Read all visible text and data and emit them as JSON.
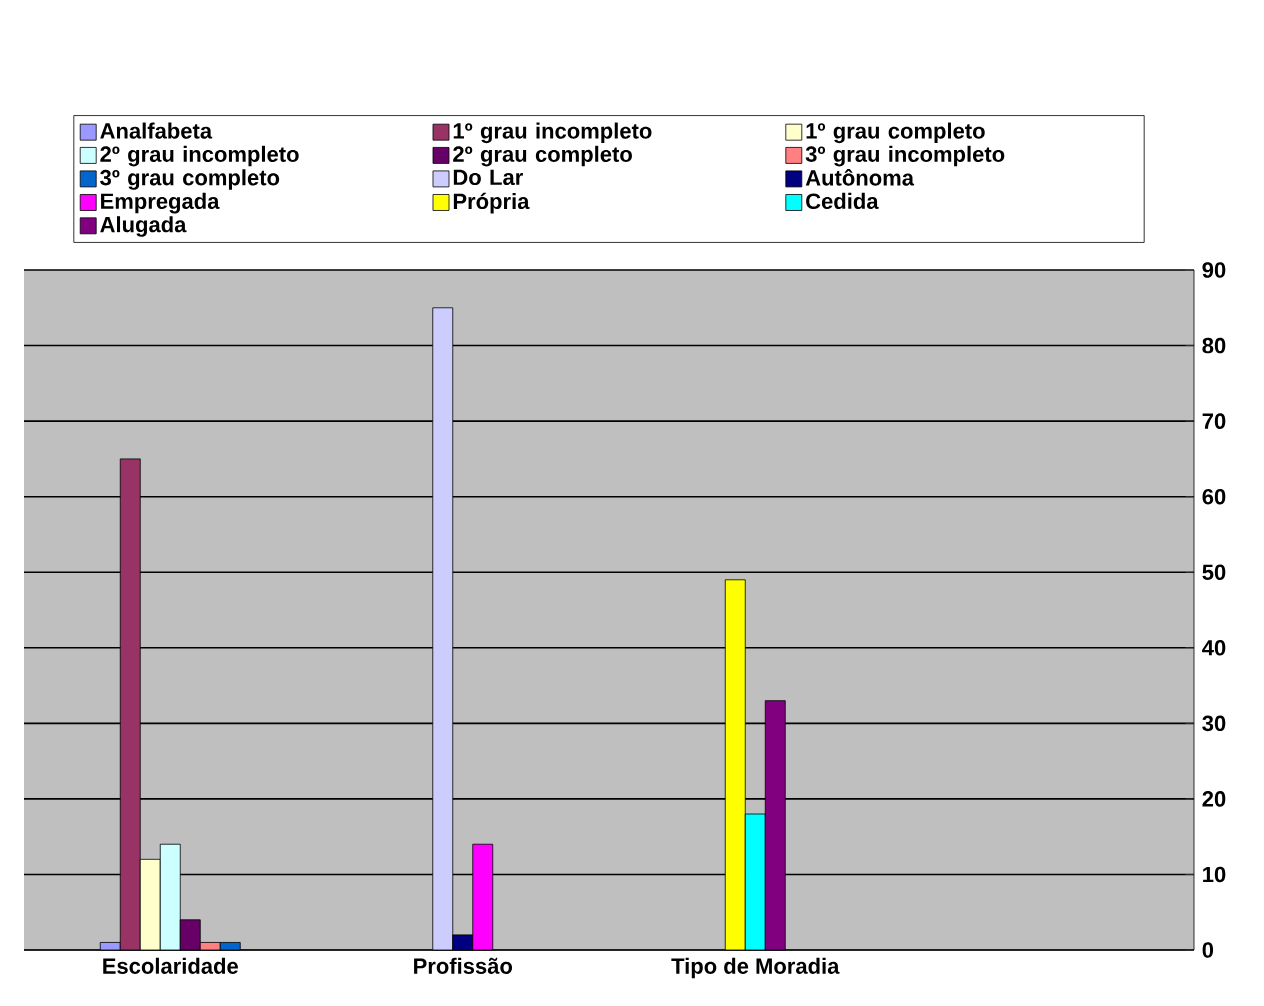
{
  "chart_data": {
    "type": "bar",
    "categories": [
      "Escolaridade",
      "Profissão",
      "Tipo de Moradia",
      null
    ],
    "series": [
      {
        "name": "Analfabeta",
        "color": "#9999ff",
        "values": [
          1,
          null,
          null,
          null
        ]
      },
      {
        "name": "1º grau incompleto",
        "color": "#993366",
        "values": [
          65,
          null,
          null,
          null
        ]
      },
      {
        "name": "1º grau completo",
        "color": "#ffffcc",
        "values": [
          12,
          null,
          null,
          null
        ]
      },
      {
        "name": "2º grau incompleto",
        "color": "#ccffff",
        "values": [
          14,
          null,
          null,
          null
        ]
      },
      {
        "name": "2º grau completo",
        "color": "#660066",
        "values": [
          4,
          null,
          null,
          null
        ]
      },
      {
        "name": "3º grau incompleto",
        "color": "#ff8080",
        "values": [
          1,
          null,
          null,
          null
        ]
      },
      {
        "name": "3º grau completo",
        "color": "#0066cc",
        "values": [
          1,
          null,
          null,
          null
        ]
      },
      {
        "name": "Do Lar",
        "color": "#ccccff",
        "values": [
          null,
          85,
          null,
          null
        ]
      },
      {
        "name": "Autônoma",
        "color": "#000080",
        "values": [
          null,
          2,
          null,
          null
        ]
      },
      {
        "name": "Empregada",
        "color": "#ff00ff",
        "values": [
          null,
          14,
          null,
          null
        ]
      },
      {
        "name": "Própria",
        "color": "#ffff00",
        "values": [
          null,
          null,
          49,
          null
        ]
      },
      {
        "name": "Cedida",
        "color": "#00ffff",
        "values": [
          null,
          null,
          18,
          null
        ]
      },
      {
        "name": "Alugada",
        "color": "#800080",
        "values": [
          null,
          null,
          33,
          null
        ]
      }
    ],
    "ylim": [
      0,
      90
    ],
    "yticks": [
      0,
      10,
      20,
      30,
      40,
      50,
      60,
      70,
      80,
      90
    ],
    "grid": "y",
    "legend": "top"
  }
}
